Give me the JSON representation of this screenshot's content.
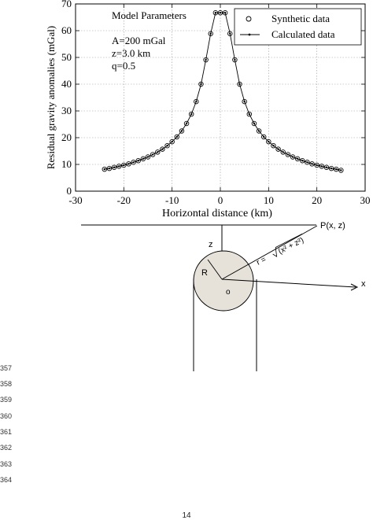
{
  "chart_data": {
    "type": "scatter",
    "xlabel": "Horizontal distance (km)",
    "ylabel": "Residual gravity anomalies (mGal)",
    "xlim": [
      -30,
      30
    ],
    "ylim": [
      0,
      70
    ],
    "xticks": [
      -30,
      -20,
      -10,
      0,
      10,
      20,
      30
    ],
    "yticks": [
      0,
      10,
      20,
      30,
      40,
      50,
      60,
      70
    ],
    "grid": true,
    "legend_position": "top-right",
    "annotation": {
      "title": "Model Parameters",
      "lines": [
        "A=200 mGal",
        "z=3.0 km",
        "q=0.5"
      ]
    },
    "series": [
      {
        "name": "Synthetic data",
        "marker": "circle",
        "x": [
          -24,
          -23,
          -22,
          -21,
          -20,
          -19,
          -18,
          -17,
          -16,
          -15,
          -14,
          -13,
          -12,
          -11,
          -10,
          -9,
          -8,
          -7,
          -6,
          -5,
          -4,
          -3,
          -2,
          -1,
          0,
          1,
          2,
          3,
          4,
          5,
          6,
          7,
          8,
          9,
          10,
          11,
          12,
          13,
          14,
          15,
          16,
          17,
          18,
          19,
          20,
          21,
          22,
          23,
          24,
          25
        ],
        "y": [
          8.2,
          8.5,
          8.9,
          9.3,
          9.7,
          10.2,
          10.8,
          11.4,
          12.1,
          12.8,
          13.7,
          14.6,
          15.7,
          17.0,
          18.5,
          20.3,
          22.5,
          25.3,
          28.8,
          33.5,
          40.0,
          49.1,
          58.9,
          66.7,
          66.7,
          66.7,
          58.9,
          49.1,
          40.0,
          33.5,
          28.8,
          25.3,
          22.5,
          20.3,
          18.5,
          17.0,
          15.7,
          14.6,
          13.7,
          12.8,
          12.1,
          11.4,
          10.8,
          10.2,
          9.7,
          9.3,
          8.9,
          8.5,
          8.2,
          7.8
        ]
      },
      {
        "name": "Calculated data",
        "marker": "dot-line",
        "x": [
          -24,
          -23,
          -22,
          -21,
          -20,
          -19,
          -18,
          -17,
          -16,
          -15,
          -14,
          -13,
          -12,
          -11,
          -10,
          -9,
          -8,
          -7,
          -6,
          -5,
          -4,
          -3,
          -2,
          -1,
          0,
          1,
          2,
          3,
          4,
          5,
          6,
          7,
          8,
          9,
          10,
          11,
          12,
          13,
          14,
          15,
          16,
          17,
          18,
          19,
          20,
          21,
          22,
          23,
          24,
          25
        ],
        "y": [
          8.2,
          8.5,
          8.9,
          9.3,
          9.7,
          10.2,
          10.8,
          11.4,
          12.1,
          12.8,
          13.7,
          14.6,
          15.7,
          17.0,
          18.5,
          20.3,
          22.5,
          25.3,
          28.8,
          33.5,
          40.0,
          49.1,
          58.9,
          66.7,
          66.7,
          66.7,
          58.9,
          49.1,
          40.0,
          33.5,
          28.8,
          25.3,
          22.5,
          20.3,
          18.5,
          17.0,
          15.7,
          14.6,
          13.7,
          12.8,
          12.1,
          11.4,
          10.8,
          10.2,
          9.7,
          9.3,
          8.9,
          8.5,
          8.2,
          7.8
        ]
      }
    ]
  },
  "diagram": {
    "point_label": "P(x, z)",
    "z_label": "z",
    "x_label": "x",
    "radius_label": "R",
    "origin_label": "o",
    "r_formula_prefix": "r = ",
    "r_formula_expr": "(x² + z²)"
  },
  "line_numbers": [
    "357",
    "358",
    "359",
    "360",
    "361",
    "362",
    "363",
    "364"
  ],
  "page_number": "14"
}
